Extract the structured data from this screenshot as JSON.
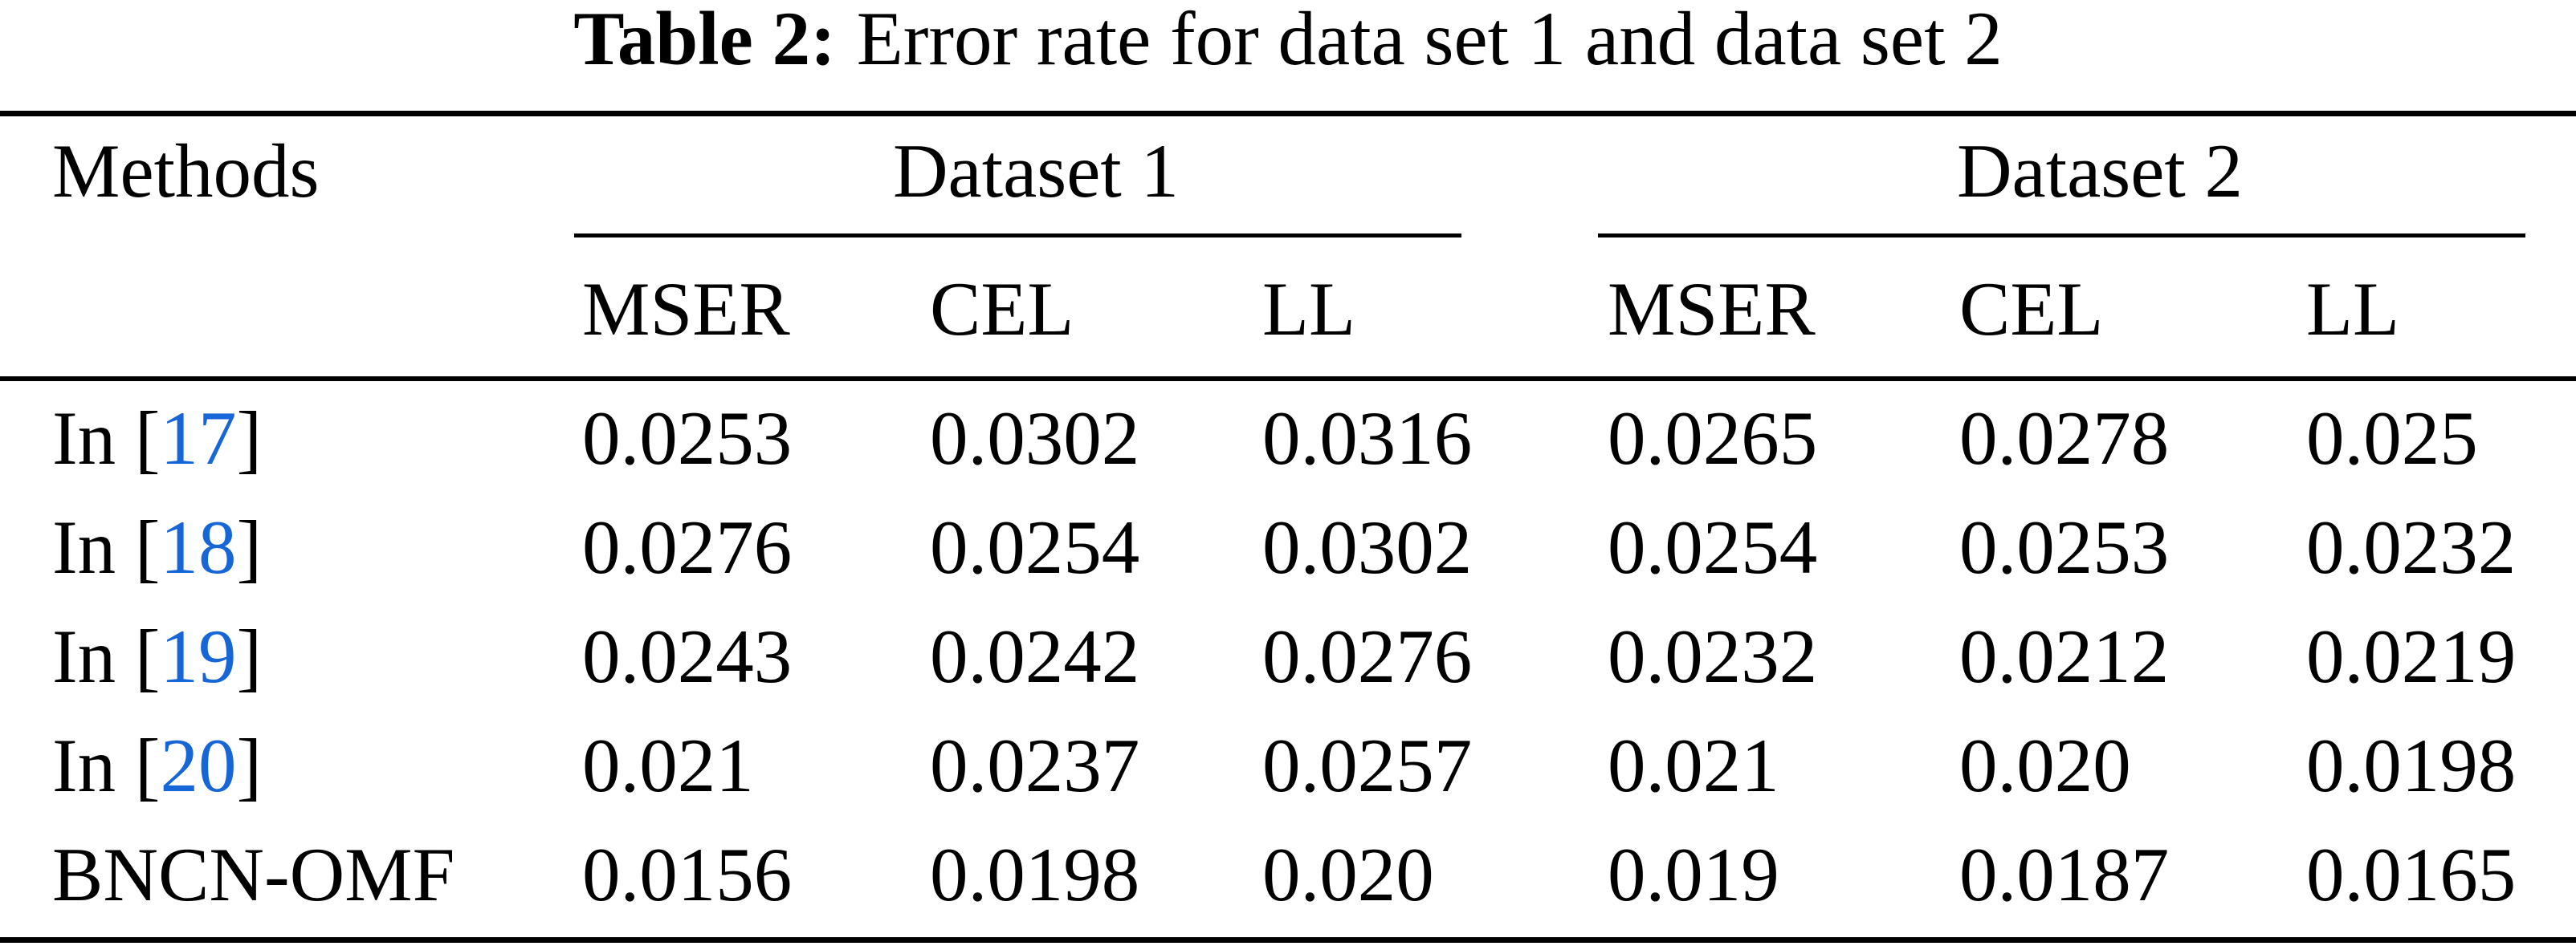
{
  "caption": {
    "label": "Table 2:",
    "text": "Error rate for data set 1 and data set 2"
  },
  "colors": {
    "text": "#000000",
    "background": "#ffffff",
    "citation_link_blue": "#1766d8"
  },
  "table": {
    "methods_header": "Methods",
    "groups": [
      "Dataset 1",
      "Dataset 2"
    ],
    "subheaders": [
      "MSER",
      "CEL",
      "LL",
      "MSER",
      "CEL",
      "LL"
    ],
    "rows": [
      {
        "method": {
          "prefix": "In [",
          "ref": "17",
          "suffix": "]"
        },
        "values": [
          "0.0253",
          "0.0302",
          "0.0316",
          "0.0265",
          "0.0278",
          "0.025"
        ]
      },
      {
        "method": {
          "prefix": "In [",
          "ref": "18",
          "suffix": "]"
        },
        "values": [
          "0.0276",
          "0.0254",
          "0.0302",
          "0.0254",
          "0.0253",
          "0.0232"
        ]
      },
      {
        "method": {
          "prefix": "In [",
          "ref": "19",
          "suffix": "]"
        },
        "values": [
          "0.0243",
          "0.0242",
          "0.0276",
          "0.0232",
          "0.0212",
          "0.0219"
        ]
      },
      {
        "method": {
          "prefix": "In [",
          "ref": "20",
          "suffix": "]"
        },
        "values": [
          "0.021",
          "0.0237",
          "0.0257",
          "0.021",
          "0.020",
          "0.0198"
        ]
      },
      {
        "method": {
          "prefix": "BNCN-OMF",
          "ref": "",
          "suffix": ""
        },
        "values": [
          "0.0156",
          "0.0198",
          "0.020",
          "0.019",
          "0.0187",
          "0.0165"
        ]
      }
    ]
  }
}
